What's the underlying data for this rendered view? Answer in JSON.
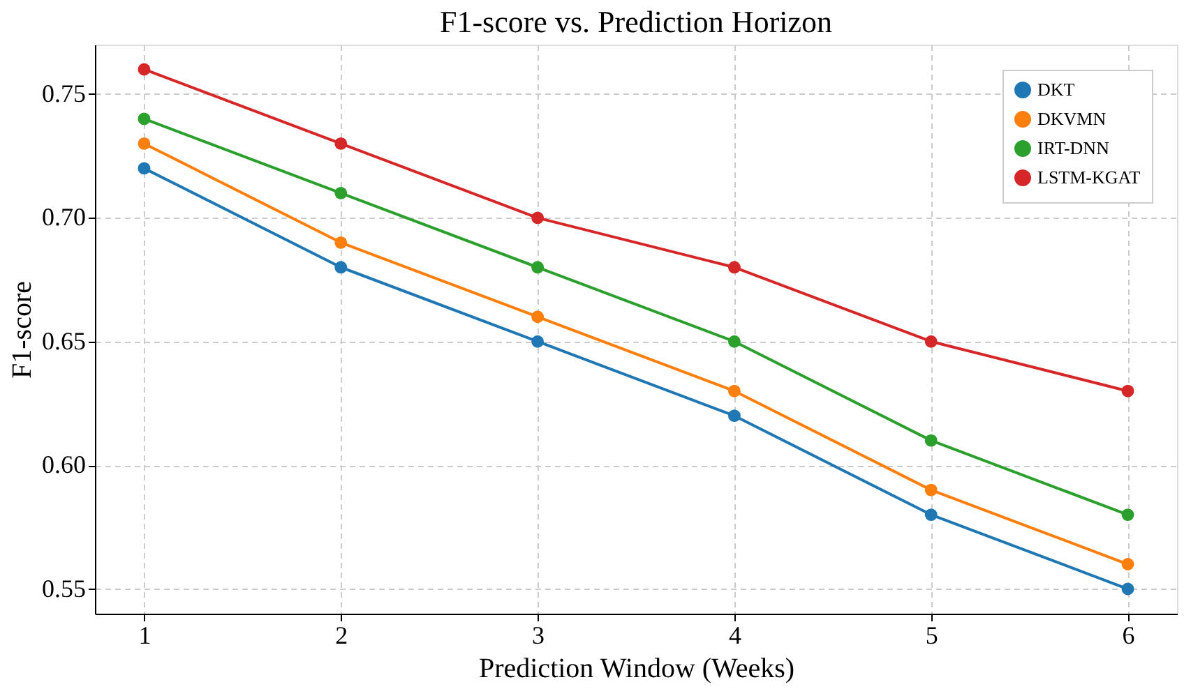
{
  "chart_data": {
    "type": "line",
    "title": "F1-score vs. Prediction Horizon",
    "xlabel": "Prediction Window (Weeks)",
    "ylabel": "F1-score",
    "x": [
      1,
      2,
      3,
      4,
      5,
      6
    ],
    "series": [
      {
        "name": "DKT",
        "color": "#1f77b4",
        "values": [
          0.72,
          0.68,
          0.65,
          0.62,
          0.58,
          0.55
        ]
      },
      {
        "name": "DKVMN",
        "color": "#ff7f0e",
        "values": [
          0.73,
          0.69,
          0.66,
          0.63,
          0.59,
          0.56
        ]
      },
      {
        "name": "IRT-DNN",
        "color": "#2ca02c",
        "values": [
          0.74,
          0.71,
          0.68,
          0.65,
          0.61,
          0.58
        ]
      },
      {
        "name": "LSTM-KGAT",
        "color": "#d62728",
        "values": [
          0.76,
          0.73,
          0.7,
          0.68,
          0.65,
          0.63
        ]
      }
    ],
    "xlim": [
      0.75,
      6.25
    ],
    "xticks": [
      1,
      2,
      3,
      4,
      5,
      6
    ],
    "ylim": [
      0.54,
      0.77
    ],
    "yticks": [
      0.55,
      {
        "value": 0.6,
        "label": "0.60"
      },
      0.65,
      {
        "value": 0.7,
        "label": "0.70"
      },
      0.75
    ],
    "grid": true,
    "legend": "top right",
    "marker": "circle",
    "line_style": "solid"
  }
}
